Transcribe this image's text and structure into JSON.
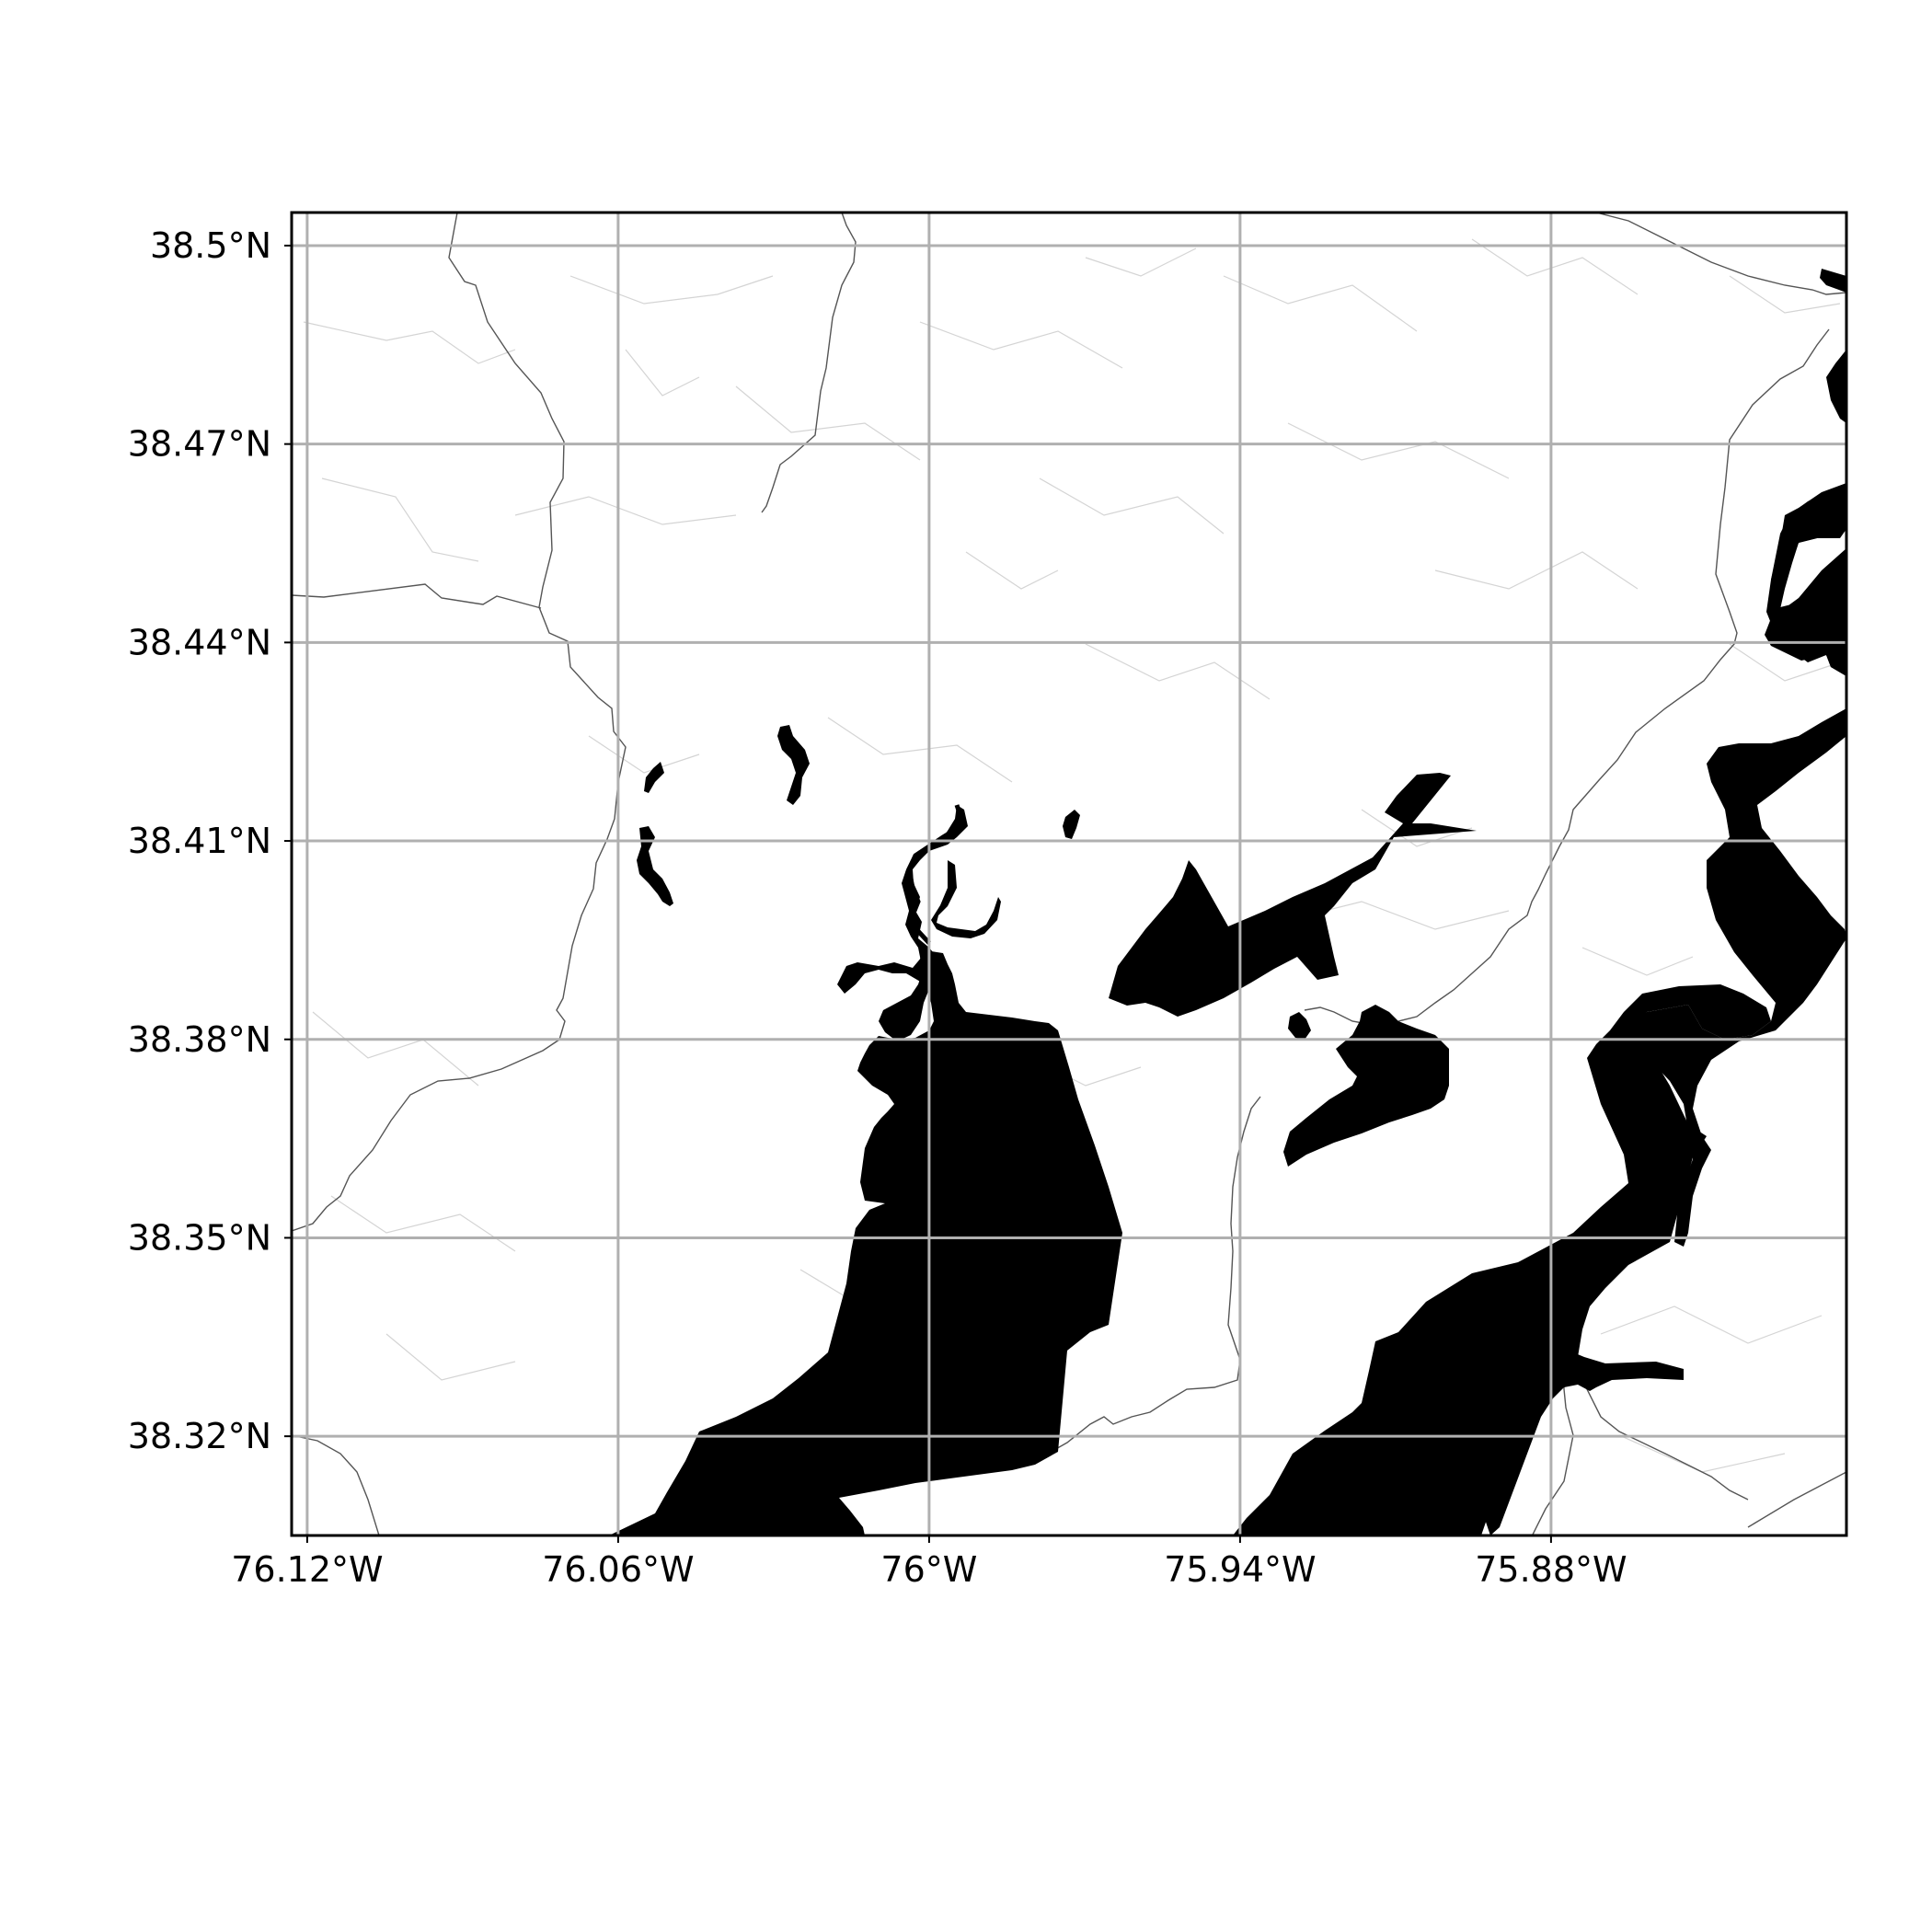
{
  "map": {
    "projection": "plate-carree",
    "extent": {
      "lon_min": -76.123,
      "lon_max": -75.823,
      "lat_min": 38.305,
      "lat_max": 38.505
    },
    "colors": {
      "land": "#ffffff",
      "water": "#000000",
      "roads": "#cfcfcf",
      "major_roads": "#555555",
      "gridlines": "#b0b0b0",
      "frame": "#000000"
    },
    "gridlines": true,
    "x_ticks": [
      {
        "value": -76.12,
        "label": "76.12°W"
      },
      {
        "value": -76.06,
        "label": "76.06°W"
      },
      {
        "value": -76.0,
        "label": "76°W"
      },
      {
        "value": -75.94,
        "label": "75.94°W"
      },
      {
        "value": -75.88,
        "label": "75.88°W"
      }
    ],
    "y_ticks": [
      {
        "value": 38.5,
        "label": "38.5°N"
      },
      {
        "value": 38.47,
        "label": "38.47°N"
      },
      {
        "value": 38.44,
        "label": "38.44°N"
      },
      {
        "value": 38.41,
        "label": "38.41°N"
      },
      {
        "value": 38.38,
        "label": "38.38°N"
      },
      {
        "value": 38.35,
        "label": "38.35°N"
      },
      {
        "value": 38.32,
        "label": "38.32°N"
      }
    ]
  }
}
